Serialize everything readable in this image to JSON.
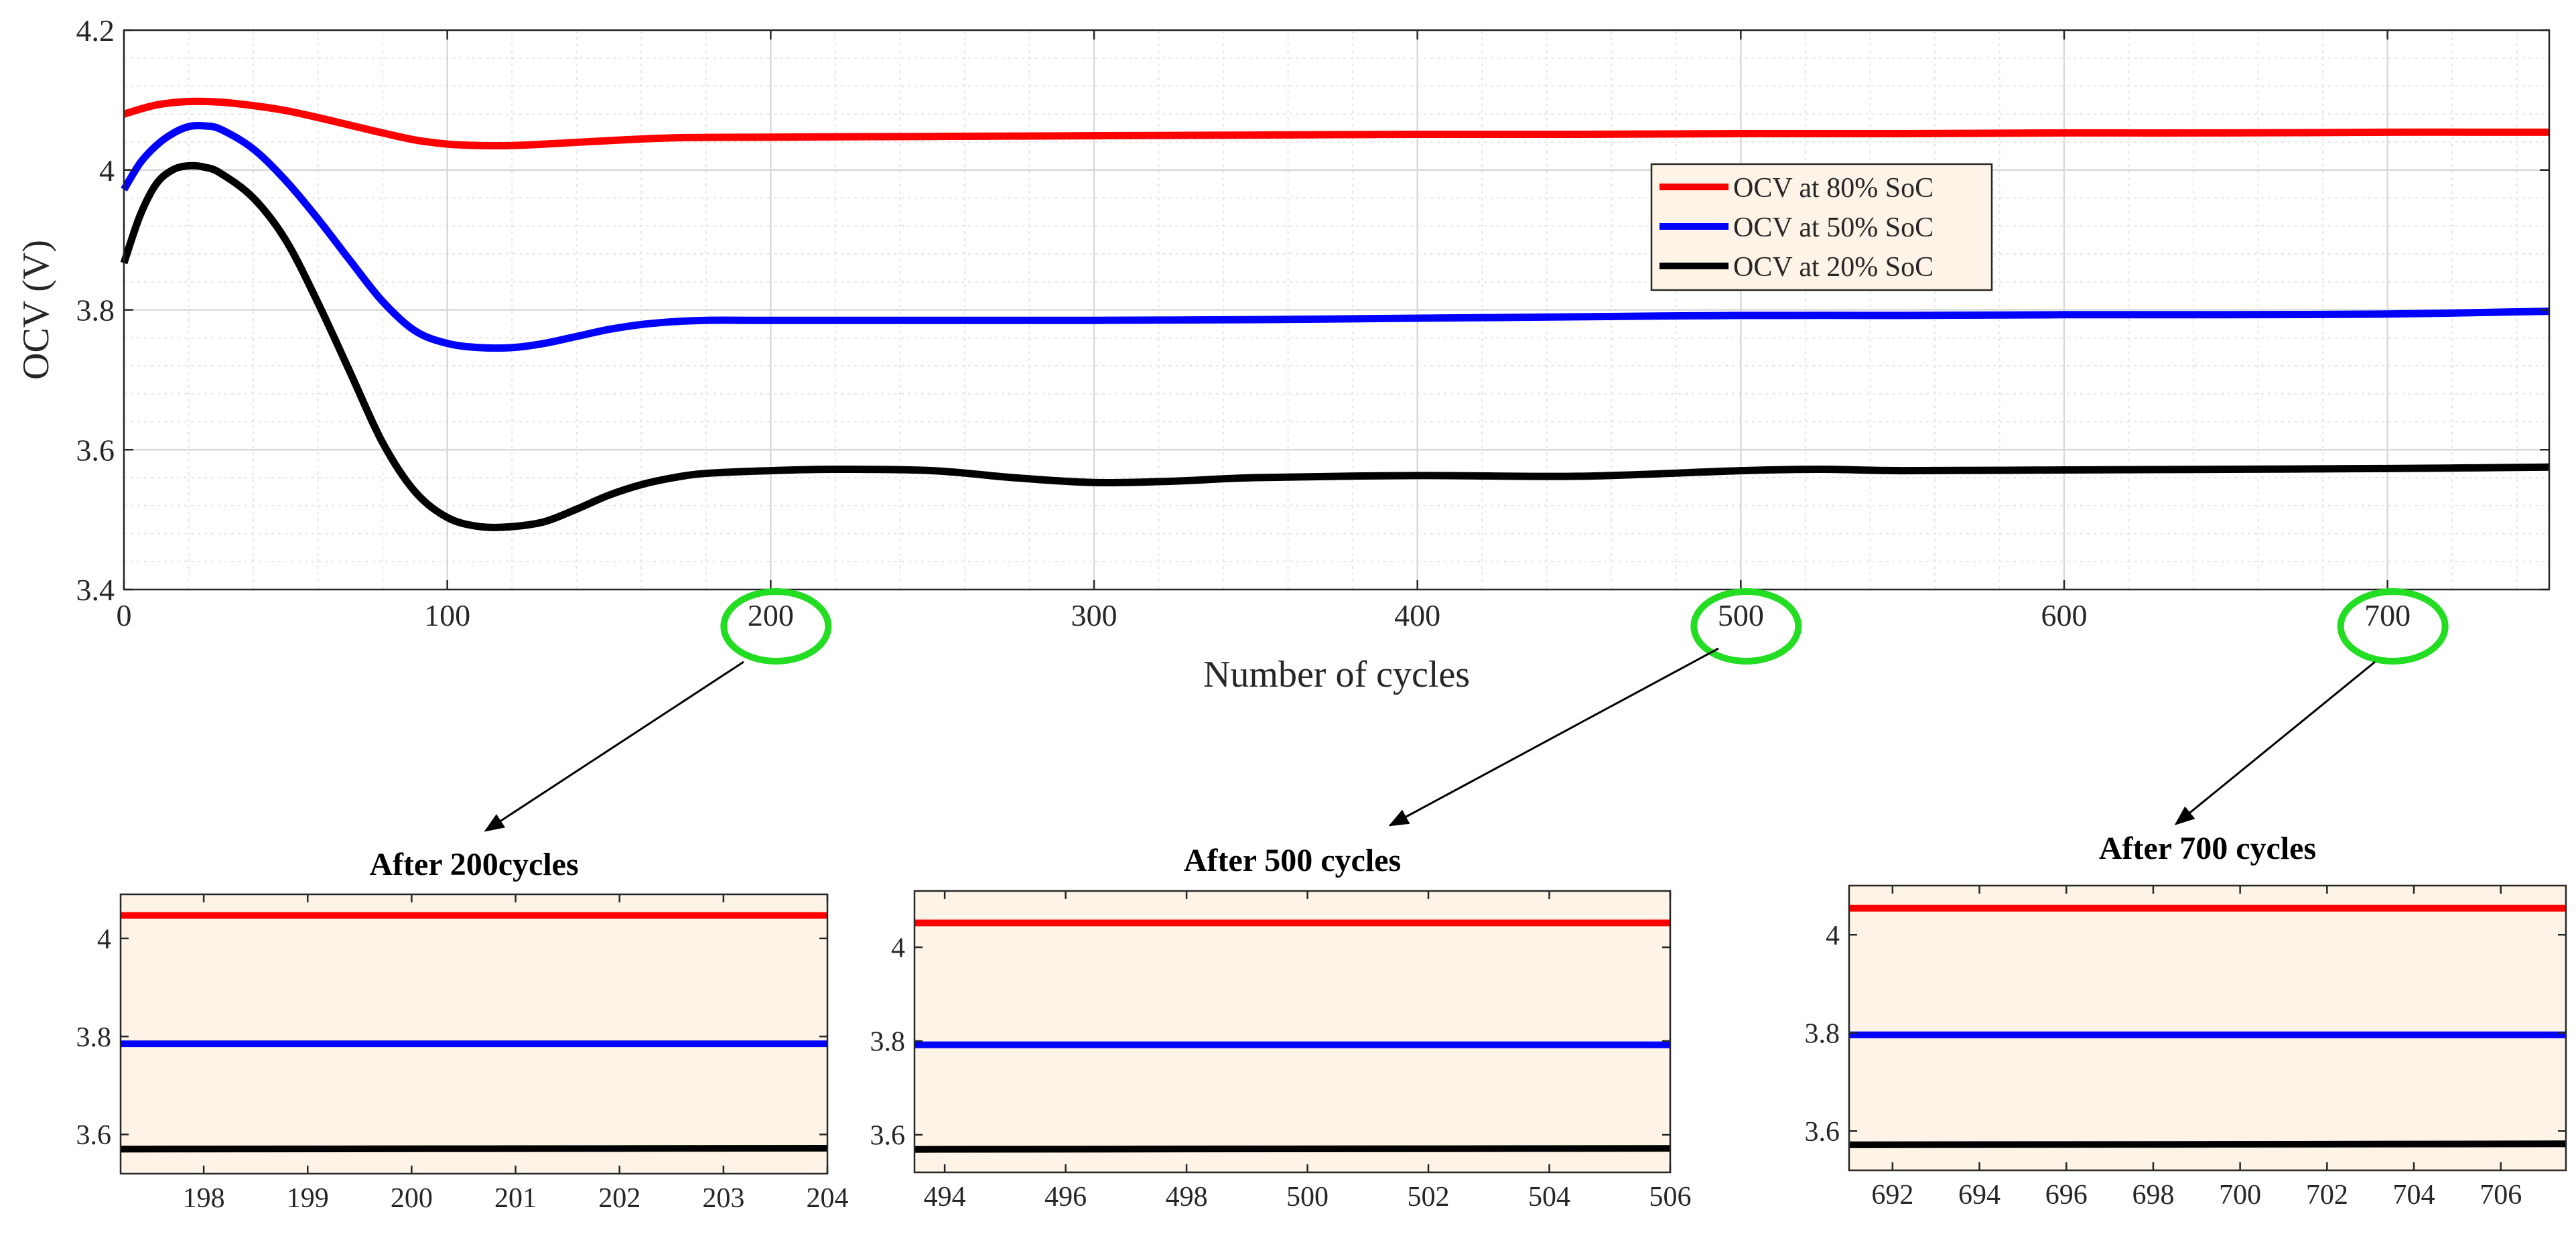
{
  "chart_data": [
    {
      "type": "line",
      "xlabel": "Number of cycles",
      "ylabel": "OCV (V)",
      "xlim": [
        0,
        750
      ],
      "ylim": [
        3.4,
        4.2
      ],
      "xticks": [
        0,
        100,
        200,
        300,
        400,
        500,
        600,
        700
      ],
      "yticks": [
        3.4,
        3.6,
        3.8,
        4.0,
        4.2
      ],
      "xtick_labels": [
        "0",
        "100",
        "200",
        "300",
        "400",
        "500",
        "600",
        "700"
      ],
      "ytick_labels": [
        "3.4",
        "3.6",
        "3.8",
        "4",
        "4.2"
      ],
      "grid": true,
      "legend_position": "top-right",
      "highlighted_ticks": [
        200,
        500,
        700
      ],
      "series": [
        {
          "name": "OCV at 80% SoC",
          "color": "#ff0000",
          "x": [
            0,
            10,
            20,
            30,
            40,
            50,
            60,
            70,
            80,
            90,
            100,
            110,
            120,
            130,
            150,
            170,
            200,
            250,
            300,
            350,
            400,
            450,
            500,
            550,
            600,
            650,
            700,
            750
          ],
          "y": [
            4.08,
            4.093,
            4.098,
            4.097,
            4.092,
            4.085,
            4.075,
            4.064,
            4.053,
            4.043,
            4.037,
            4.035,
            4.035,
            4.037,
            4.042,
            4.046,
            4.047,
            4.048,
            4.049,
            4.05,
            4.051,
            4.051,
            4.052,
            4.052,
            4.053,
            4.053,
            4.054,
            4.054
          ]
        },
        {
          "name": "OCV at 50% SoC",
          "color": "#0000ff",
          "x": [
            0,
            5,
            10,
            15,
            20,
            25,
            30,
            40,
            50,
            60,
            70,
            80,
            90,
            100,
            110,
            120,
            130,
            140,
            150,
            160,
            170,
            180,
            200,
            250,
            300,
            350,
            400,
            450,
            500,
            550,
            600,
            650,
            700,
            750
          ],
          "y": [
            3.972,
            4.01,
            4.035,
            4.052,
            4.062,
            4.063,
            4.058,
            4.03,
            3.985,
            3.93,
            3.87,
            3.812,
            3.77,
            3.752,
            3.746,
            3.746,
            3.752,
            3.762,
            3.772,
            3.779,
            3.783,
            3.785,
            3.785,
            3.785,
            3.785,
            3.786,
            3.788,
            3.79,
            3.792,
            3.792,
            3.793,
            3.793,
            3.794,
            3.798
          ]
        },
        {
          "name": "OCV at 20% SoC",
          "color": "#000000",
          "x": [
            0,
            5,
            10,
            15,
            20,
            25,
            30,
            40,
            50,
            60,
            70,
            80,
            90,
            100,
            110,
            120,
            130,
            140,
            150,
            160,
            170,
            180,
            200,
            220,
            250,
            275,
            300,
            325,
            350,
            400,
            450,
            500,
            525,
            550,
            600,
            650,
            700,
            750
          ],
          "y": [
            3.867,
            3.935,
            3.98,
            4.0,
            4.006,
            4.004,
            3.995,
            3.96,
            3.9,
            3.81,
            3.71,
            3.61,
            3.54,
            3.503,
            3.49,
            3.49,
            3.497,
            3.515,
            3.535,
            3.55,
            3.56,
            3.566,
            3.57,
            3.572,
            3.57,
            3.56,
            3.553,
            3.555,
            3.56,
            3.563,
            3.562,
            3.57,
            3.572,
            3.57,
            3.571,
            3.572,
            3.573,
            3.575
          ]
        }
      ]
    },
    {
      "type": "line",
      "title": "After 200cycles",
      "xlim": [
        197.2,
        204
      ],
      "ylim": [
        3.52,
        4.09
      ],
      "xticks": [
        198,
        199,
        200,
        201,
        202,
        203,
        204
      ],
      "xtick_labels": [
        "198",
        "199",
        "200",
        "201",
        "202",
        "203",
        "204"
      ],
      "yticks": [
        3.6,
        3.8,
        4.0
      ],
      "ytick_labels": [
        "3.6",
        "3.8",
        "4"
      ],
      "background": "#fdf3e7",
      "series": [
        {
          "color": "#ff0000",
          "x": [
            197.2,
            204
          ],
          "y": [
            4.047,
            4.047
          ]
        },
        {
          "color": "#0000ff",
          "x": [
            197.2,
            204
          ],
          "y": [
            3.785,
            3.785
          ]
        },
        {
          "color": "#000000",
          "x": [
            197.2,
            204
          ],
          "y": [
            3.57,
            3.572
          ]
        }
      ]
    },
    {
      "type": "line",
      "title": "After 500 cycles",
      "xlim": [
        493.5,
        506
      ],
      "ylim": [
        3.52,
        4.12
      ],
      "xticks": [
        494,
        496,
        498,
        500,
        502,
        504,
        506
      ],
      "xtick_labels": [
        "494",
        "496",
        "498",
        "500",
        "502",
        "504",
        "506"
      ],
      "yticks": [
        3.6,
        3.8,
        4.0
      ],
      "ytick_labels": [
        "3.6",
        "3.8",
        "4"
      ],
      "background": "#fdf3e7",
      "series": [
        {
          "color": "#ff0000",
          "x": [
            493.5,
            506
          ],
          "y": [
            4.052,
            4.052
          ]
        },
        {
          "color": "#0000ff",
          "x": [
            493.5,
            506
          ],
          "y": [
            3.792,
            3.792
          ]
        },
        {
          "color": "#000000",
          "x": [
            493.5,
            506
          ],
          "y": [
            3.569,
            3.571
          ]
        }
      ]
    },
    {
      "type": "line",
      "title": "After 700 cycles",
      "xlim": [
        691,
        707.5
      ],
      "ylim": [
        3.52,
        4.1
      ],
      "xticks": [
        692,
        694,
        696,
        698,
        700,
        702,
        704,
        706
      ],
      "xtick_labels": [
        "692",
        "694",
        "696",
        "698",
        "700",
        "702",
        "704",
        "706"
      ],
      "yticks": [
        3.6,
        3.8,
        4.0
      ],
      "ytick_labels": [
        "3.6",
        "3.8",
        "4"
      ],
      "background": "#fdf3e7",
      "series": [
        {
          "color": "#ff0000",
          "x": [
            691,
            707.5
          ],
          "y": [
            4.054,
            4.054
          ]
        },
        {
          "color": "#0000ff",
          "x": [
            691,
            707.5
          ],
          "y": [
            3.796,
            3.796
          ]
        },
        {
          "color": "#000000",
          "x": [
            691,
            707.5
          ],
          "y": [
            3.572,
            3.574
          ]
        }
      ]
    }
  ],
  "colors": {
    "highlight_circle": "#22dd22",
    "legend_background": "#fdf3e7",
    "grid": "#d9d9d9"
  }
}
